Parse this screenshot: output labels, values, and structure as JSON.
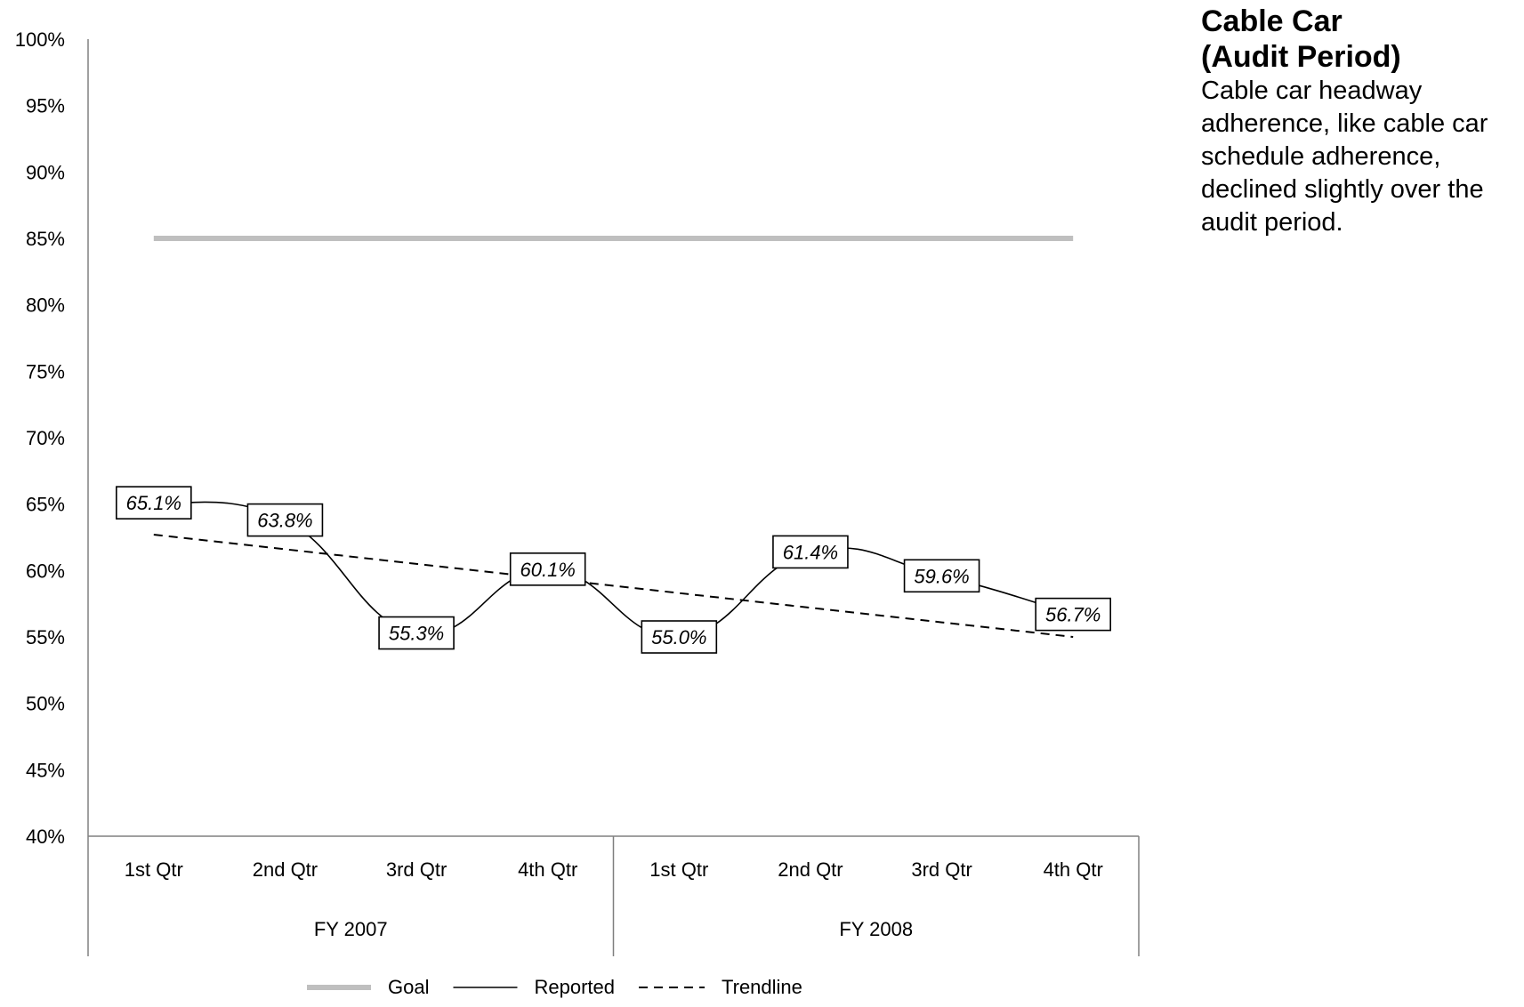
{
  "panel": {
    "title_line1": "Cable Car",
    "title_line2": "(Audit Period)",
    "text": "Cable car headway adherence, like cable car schedule adherence, declined slightly over the audit period."
  },
  "chart_data": {
    "type": "line",
    "y_ticks": [
      "100%",
      "95%",
      "90%",
      "85%",
      "80%",
      "75%",
      "70%",
      "65%",
      "60%",
      "55%",
      "50%",
      "45%",
      "40%"
    ],
    "ylim": [
      40,
      100
    ],
    "categories": [
      "1st Qtr",
      "2nd Qtr",
      "3rd Qtr",
      "4th Qtr",
      "1st Qtr",
      "2nd Qtr",
      "3rd Qtr",
      "4th Qtr"
    ],
    "groups": [
      {
        "label": "FY 2007",
        "count": 4
      },
      {
        "label": "FY 2008",
        "count": 4
      }
    ],
    "series": [
      {
        "name": "Goal",
        "style": "solid-thick",
        "color": "#bfbfbf",
        "values": [
          85,
          85,
          85,
          85,
          85,
          85,
          85,
          85
        ]
      },
      {
        "name": "Reported",
        "style": "solid",
        "color": "#000000",
        "values": [
          65.1,
          63.8,
          55.3,
          60.1,
          55.0,
          61.4,
          59.6,
          56.7
        ],
        "labels": [
          "65.1%",
          "63.8%",
          "55.3%",
          "60.1%",
          "55.0%",
          "61.4%",
          "59.6%",
          "56.7%"
        ]
      },
      {
        "name": "Trendline",
        "style": "dashed",
        "color": "#000000",
        "values": [
          62.7,
          61.6,
          60.5,
          59.4,
          58.3,
          57.2,
          56.1,
          55.0
        ]
      }
    ],
    "grid": false,
    "legend_position": "bottom"
  }
}
